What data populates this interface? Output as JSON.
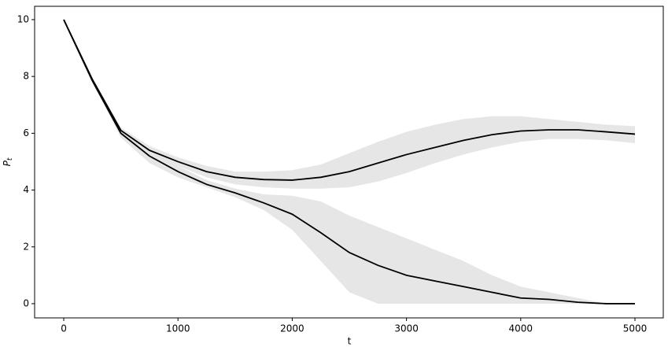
{
  "chart_data": {
    "type": "line",
    "xlabel": "t",
    "ylabel": "Pt",
    "x": [
      0,
      250,
      500,
      750,
      1000,
      1250,
      1500,
      1750,
      2000,
      2250,
      2500,
      2750,
      3000,
      3250,
      3500,
      3750,
      4000,
      4250,
      4500,
      4750,
      5000
    ],
    "series": [
      {
        "color": "#000000",
        "band_color": "#e2e2e2",
        "values": [
          10,
          7.9,
          6.1,
          5.4,
          5.0,
          4.65,
          4.45,
          4.37,
          4.35,
          4.45,
          4.65,
          4.95,
          5.25,
          5.5,
          5.75,
          5.95,
          6.08,
          6.12,
          6.12,
          6.05,
          5.97
        ],
        "lower": [
          10,
          7.85,
          6.0,
          5.3,
          4.85,
          4.45,
          4.2,
          4.1,
          4.05,
          4.05,
          4.1,
          4.3,
          4.6,
          4.95,
          5.25,
          5.5,
          5.7,
          5.8,
          5.8,
          5.75,
          5.65
        ],
        "upper": [
          10,
          7.95,
          6.2,
          5.55,
          5.15,
          4.85,
          4.65,
          4.65,
          4.7,
          4.9,
          5.3,
          5.7,
          6.05,
          6.3,
          6.5,
          6.6,
          6.6,
          6.5,
          6.4,
          6.3,
          6.25
        ]
      },
      {
        "color": "#000000",
        "band_color": "#e2e2e2",
        "values": [
          10,
          7.85,
          6.0,
          5.2,
          4.65,
          4.2,
          3.9,
          3.55,
          3.15,
          2.5,
          1.8,
          1.35,
          1.0,
          0.8,
          0.6,
          0.4,
          0.2,
          0.15,
          0.05,
          0,
          0
        ],
        "lower": [
          10,
          7.8,
          5.85,
          4.95,
          4.45,
          4.1,
          3.75,
          3.3,
          2.6,
          1.5,
          0.4,
          0,
          0,
          0,
          0,
          0,
          0,
          0,
          0,
          0,
          0
        ],
        "upper": [
          10,
          7.95,
          6.1,
          5.4,
          4.85,
          4.35,
          4.05,
          3.85,
          3.8,
          3.6,
          3.1,
          2.7,
          2.3,
          1.9,
          1.5,
          1.0,
          0.6,
          0.4,
          0.2,
          0,
          0
        ]
      }
    ],
    "xlim": [
      -255,
      5248
    ],
    "ylim": [
      -0.5,
      10.47
    ],
    "xticks": [
      0,
      1000,
      2000,
      3000,
      4000,
      5000
    ],
    "yticks": [
      0,
      2,
      4,
      6,
      8,
      10
    ]
  }
}
